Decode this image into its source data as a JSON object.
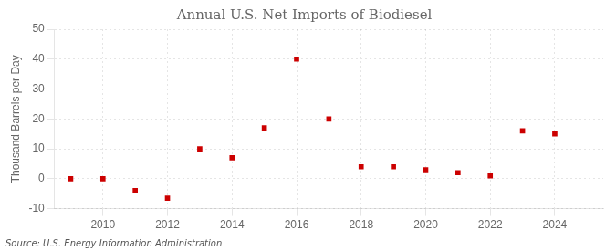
{
  "chart_data": {
    "type": "scatter",
    "title": "Annual U.S. Net Imports of Biodiesel",
    "ylabel": "Thousand Barrels per Day",
    "annotations": [
      "Source: U.S. Energy Information Administration"
    ],
    "x": [
      2009,
      2010,
      2011,
      2012,
      2013,
      2014,
      2015,
      2016,
      2017,
      2018,
      2019,
      2020,
      2021,
      2022,
      2023,
      2024
    ],
    "values": [
      0.0,
      0.0,
      -4.0,
      -6.5,
      10.0,
      7.0,
      17.0,
      40.0,
      20.0,
      4.0,
      4.0,
      3.0,
      2.0,
      1.0,
      16.0,
      15.0
    ],
    "color": "#cc0000",
    "marker": "square",
    "xlim": [
      2008.5,
      2025.5
    ],
    "ylim": [
      -10,
      50
    ],
    "xticks": [
      2010,
      2012,
      2014,
      2016,
      2018,
      2020,
      2022,
      2024
    ],
    "yticks": [
      -10,
      0,
      10,
      20,
      30,
      40,
      50
    ],
    "grid": true
  }
}
